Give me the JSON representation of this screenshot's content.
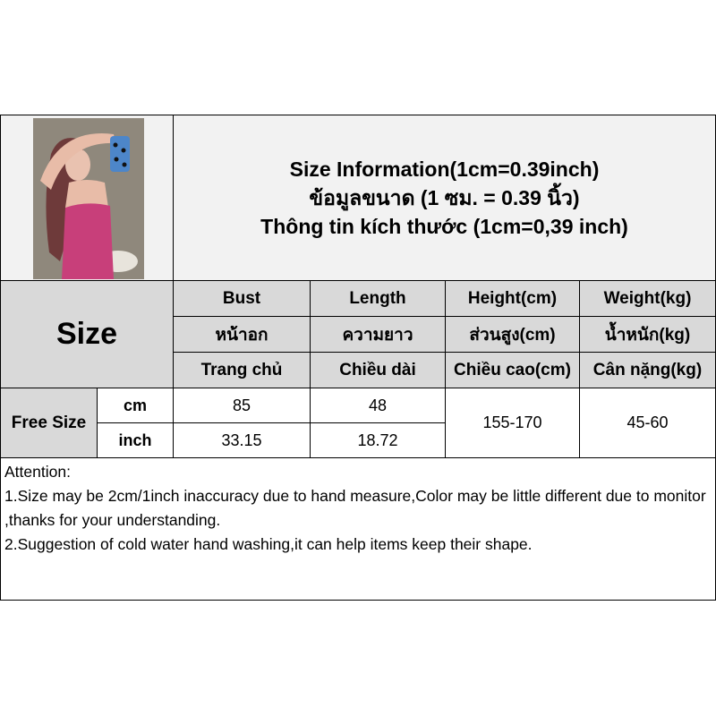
{
  "title": {
    "line1": "Size Information(1cm=0.39inch)",
    "line2": "ข้อมูลขนาด (1 ซม. = 0.39 นิ้ว)",
    "line3": "Thông tin kích thước (1cm=0,39 inch)"
  },
  "size_label": "Size",
  "columns": [
    {
      "en": "Bust",
      "th": "หน้าอก",
      "vi": "Trang chủ"
    },
    {
      "en": "Length",
      "th": "ความยาว",
      "vi": "Chiều dài"
    },
    {
      "en": "Height(cm)",
      "th": "ส่วนสูง(cm)",
      "vi": "Chiều cao(cm)"
    },
    {
      "en": "Weight(kg)",
      "th": "น้ำหนัก(kg)",
      "vi": "Cân nặng(kg)"
    }
  ],
  "rows": {
    "size_name": "Free Size",
    "cm": {
      "unit": "cm",
      "bust": "85",
      "length": "48"
    },
    "inch": {
      "unit": "inch",
      "bust": "33.15",
      "length": "18.72"
    },
    "height": "155-170",
    "weight": "45-60"
  },
  "attention": {
    "heading": "Attention:",
    "note1": "1.Size may be 2cm/1inch inaccuracy due to hand measure,Color may be little different due to monitor ,thanks for your understanding.",
    "note2": "2.Suggestion of cold water hand washing,it can help items keep their shape."
  },
  "product_photo": "model-photo"
}
